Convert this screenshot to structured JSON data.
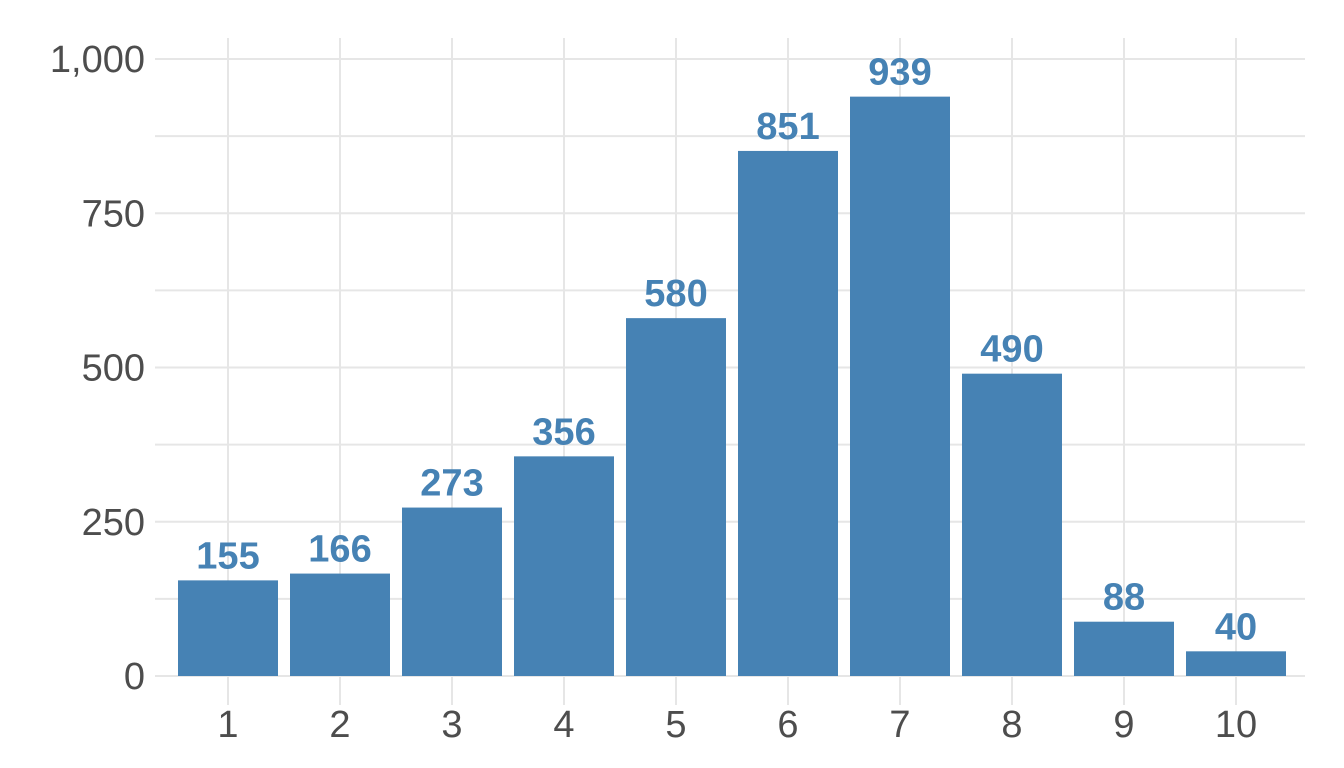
{
  "colors": {
    "bar": "#4682b4",
    "grid": "#e6e6e6",
    "tick_text": "#4d4d4d",
    "background": "#ffffff"
  },
  "chart_data": {
    "type": "bar",
    "categories": [
      "1",
      "2",
      "3",
      "4",
      "5",
      "6",
      "7",
      "8",
      "9",
      "10"
    ],
    "values": [
      155,
      166,
      273,
      356,
      580,
      851,
      939,
      490,
      88,
      40
    ],
    "data_labels": [
      "155",
      "166",
      "273",
      "356",
      "580",
      "851",
      "939",
      "490",
      "88",
      "40"
    ],
    "y_ticks": [
      0,
      250,
      500,
      750,
      1000
    ],
    "y_tick_labels": [
      "0",
      "250",
      "500",
      "750",
      "1,000"
    ],
    "ylim": [
      0,
      1000
    ],
    "grid": true,
    "legend": "none"
  }
}
